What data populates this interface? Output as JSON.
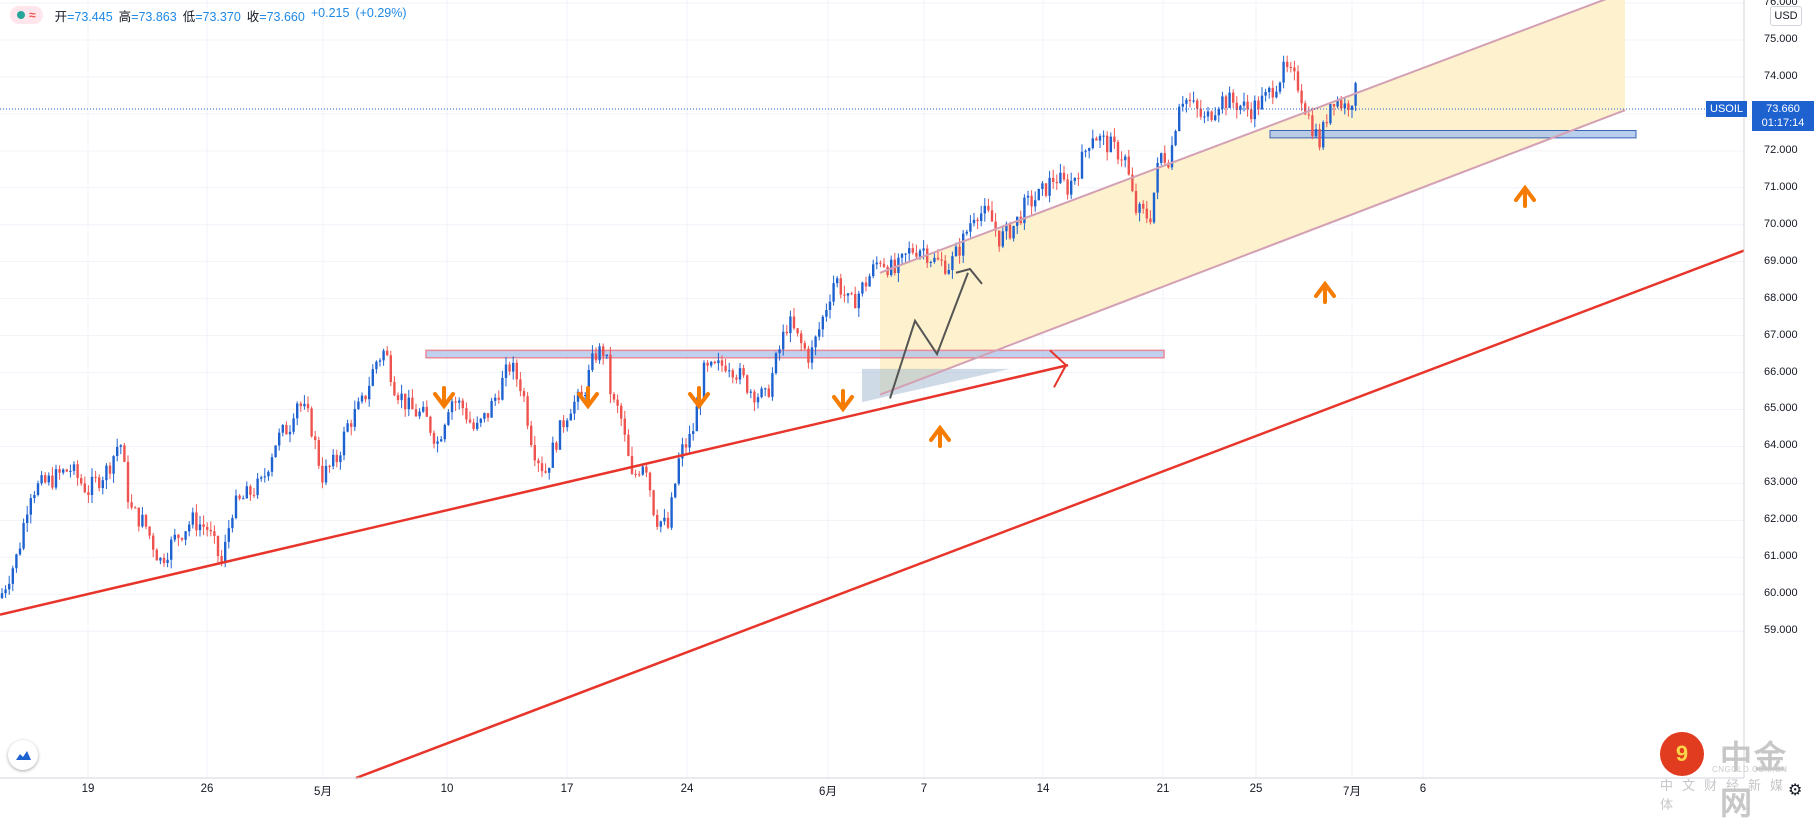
{
  "legend": {
    "open_label": "开",
    "open_value": "=73.445",
    "high_label": "高",
    "high_value": "=73.863",
    "low_label": "低",
    "low_value": "=73.370",
    "close_label": "收",
    "close_value": "=73.660",
    "change": "+0.215",
    "change_pct": "(+0.29%)"
  },
  "currency_button": "USD",
  "symbol_tag": "USOIL",
  "last_price_tag": "73.660",
  "countdown_tag": "01:17:14",
  "colors": {
    "up": "#1e62d0",
    "down": "#ef5350",
    "trendline": "#e8352b",
    "channel_fill": "#fdf0c4",
    "channel_border": "#d4a0b4",
    "zone_fill": "#a9c2e8",
    "zone_border": "#e88a98",
    "arrow": "#f57c00",
    "grid": "#f0f3fa"
  },
  "watermark": {
    "main": "中金网",
    "sub": "CNGOLD.COM.CN",
    "cn": "中文财经新媒体"
  },
  "chart_data": {
    "type": "candlestick",
    "symbol": "USOIL",
    "currency": "USD",
    "y_axis": {
      "ticks": [
        "59.000",
        "60.000",
        "61.000",
        "62.000",
        "63.000",
        "64.000",
        "65.000",
        "66.000",
        "67.000",
        "68.000",
        "69.000",
        "70.000",
        "71.000",
        "72.000",
        "73.000",
        "74.000",
        "75.000",
        "76.000"
      ],
      "ylim": [
        58.6,
        76.0
      ]
    },
    "x_axis": {
      "ticks": [
        {
          "label": "19",
          "pos": 88
        },
        {
          "label": "26",
          "pos": 207
        },
        {
          "label": "5月",
          "pos": 323
        },
        {
          "label": "10",
          "pos": 447
        },
        {
          "label": "17",
          "pos": 567
        },
        {
          "label": "24",
          "pos": 687
        },
        {
          "label": "6月",
          "pos": 828
        },
        {
          "label": "7",
          "pos": 924
        },
        {
          "label": "14",
          "pos": 1043
        },
        {
          "label": "21",
          "pos": 1163
        },
        {
          "label": "25",
          "pos": 1256
        },
        {
          "label": "7月",
          "pos": 1352
        },
        {
          "label": "6",
          "pos": 1423
        }
      ]
    },
    "ohlc_path": [
      [
        0,
        59.9
      ],
      [
        18,
        61.1
      ],
      [
        30,
        62.8
      ],
      [
        45,
        63.0
      ],
      [
        70,
        63.4
      ],
      [
        88,
        62.8
      ],
      [
        108,
        63.4
      ],
      [
        120,
        64.2
      ],
      [
        130,
        62.3
      ],
      [
        145,
        61.9
      ],
      [
        160,
        60.9
      ],
      [
        175,
        61.5
      ],
      [
        192,
        62.0
      ],
      [
        207,
        61.8
      ],
      [
        222,
        60.8
      ],
      [
        232,
        62.3
      ],
      [
        248,
        62.7
      ],
      [
        262,
        63.0
      ],
      [
        275,
        64.1
      ],
      [
        290,
        64.6
      ],
      [
        296,
        65.3
      ],
      [
        310,
        64.7
      ],
      [
        322,
        63.2
      ],
      [
        336,
        63.6
      ],
      [
        348,
        64.6
      ],
      [
        363,
        65.2
      ],
      [
        376,
        66.3
      ],
      [
        385,
        66.6
      ],
      [
        395,
        65.6
      ],
      [
        410,
        65.0
      ],
      [
        425,
        64.8
      ],
      [
        438,
        64.1
      ],
      [
        450,
        65.3
      ],
      [
        462,
        65.1
      ],
      [
        475,
        64.4
      ],
      [
        488,
        64.9
      ],
      [
        500,
        65.6
      ],
      [
        510,
        66.2
      ],
      [
        522,
        65.6
      ],
      [
        533,
        64.0
      ],
      [
        545,
        63.3
      ],
      [
        558,
        64.3
      ],
      [
        570,
        65.1
      ],
      [
        582,
        65.3
      ],
      [
        595,
        66.5
      ],
      [
        605,
        66.6
      ],
      [
        612,
        65.2
      ],
      [
        620,
        64.9
      ],
      [
        632,
        63.1
      ],
      [
        645,
        63.7
      ],
      [
        655,
        62.1
      ],
      [
        668,
        61.8
      ],
      [
        680,
        63.8
      ],
      [
        692,
        64.3
      ],
      [
        704,
        66.0
      ],
      [
        716,
        66.1
      ],
      [
        728,
        66.3
      ],
      [
        740,
        65.9
      ],
      [
        752,
        65.5
      ],
      [
        766,
        65.3
      ],
      [
        775,
        66.2
      ],
      [
        788,
        67.4
      ],
      [
        800,
        66.8
      ],
      [
        810,
        66.4
      ],
      [
        822,
        67.4
      ],
      [
        835,
        68.6
      ],
      [
        850,
        67.8
      ],
      [
        865,
        68.4
      ],
      [
        880,
        69.1
      ],
      [
        895,
        68.7
      ],
      [
        910,
        69.3
      ],
      [
        922,
        69.4
      ],
      [
        935,
        69.0
      ],
      [
        950,
        68.9
      ],
      [
        962,
        69.5
      ],
      [
        975,
        70.4
      ],
      [
        990,
        70.2
      ],
      [
        1000,
        69.6
      ],
      [
        1015,
        70.0
      ],
      [
        1025,
        70.5
      ],
      [
        1040,
        70.8
      ],
      [
        1055,
        71.3
      ],
      [
        1068,
        71.0
      ],
      [
        1080,
        71.6
      ],
      [
        1092,
        72.5
      ],
      [
        1100,
        72.3
      ],
      [
        1112,
        72.1
      ],
      [
        1125,
        71.8
      ],
      [
        1135,
        70.4
      ],
      [
        1150,
        70.2
      ],
      [
        1160,
        71.9
      ],
      [
        1170,
        71.8
      ],
      [
        1180,
        73.5
      ],
      [
        1190,
        73.3
      ],
      [
        1205,
        72.8
      ],
      [
        1220,
        73.4
      ],
      [
        1235,
        73.3
      ],
      [
        1250,
        73.1
      ],
      [
        1265,
        73.4
      ],
      [
        1285,
        74.2
      ],
      [
        1298,
        73.8
      ],
      [
        1310,
        72.8
      ],
      [
        1320,
        72.2
      ],
      [
        1332,
        73.5
      ],
      [
        1345,
        73.2
      ],
      [
        1358,
        73.66
      ]
    ],
    "drawings": {
      "resistance_zone": {
        "from": 66.4,
        "to": 66.6
      },
      "support_zone": {
        "from": 72.35,
        "to": 72.55
      },
      "channel_upper_from": 68.7,
      "channel_upper_to": 76.3,
      "channel_lower_from": 65.4,
      "channel_lower_to": 73.1,
      "trendline_1": {
        "from": 58.8,
        "to": 69.3
      },
      "trendline_2": {
        "from": 58.4,
        "to": 69.3
      }
    }
  }
}
